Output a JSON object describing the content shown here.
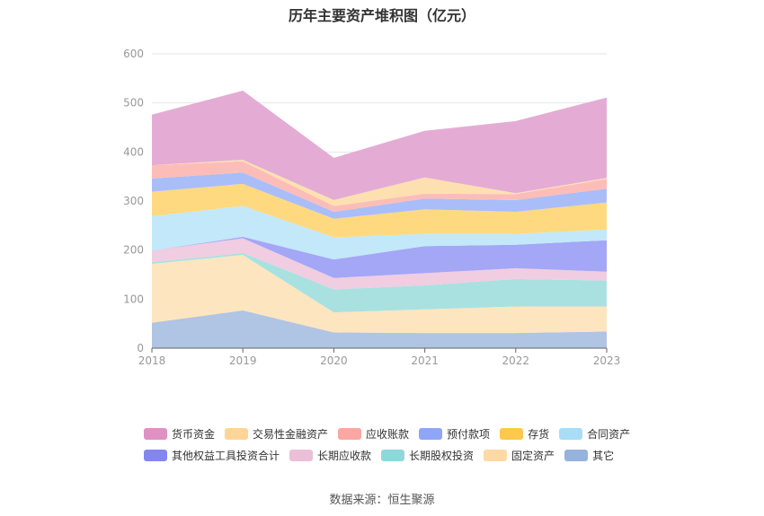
{
  "chart_data": {
    "type": "area",
    "stacked": true,
    "title": "历年主要资产堆积图（亿元）",
    "x": [
      "2018",
      "2019",
      "2020",
      "2021",
      "2022",
      "2023"
    ],
    "ylim": [
      0,
      600
    ],
    "yticks": [
      0,
      100,
      200,
      300,
      400,
      500,
      600
    ],
    "grid": true,
    "legend_position": "bottom",
    "series": [
      {
        "name": "其它",
        "color": "#b0c4e3",
        "legendColor": "#95b3dc",
        "values": [
          52,
          77,
          32,
          31,
          31,
          34
        ]
      },
      {
        "name": "固定资产",
        "color": "#fde5c0",
        "legendColor": "#fdd9a5",
        "values": [
          120,
          113,
          41,
          48,
          54,
          51
        ]
      },
      {
        "name": "长期股权投资",
        "color": "#a9e1e1",
        "legendColor": "#8fd8da",
        "values": [
          3,
          4,
          47,
          49,
          56,
          53
        ]
      },
      {
        "name": "长期应收款",
        "color": "#f0cde1",
        "legendColor": "#ebbfd7",
        "values": [
          24,
          30,
          23,
          25,
          22,
          18
        ]
      },
      {
        "name": "其他权益工具投资合计",
        "color": "#a4a6f6",
        "legendColor": "#8486f0",
        "values": [
          0,
          3,
          38,
          55,
          48,
          64
        ]
      },
      {
        "name": "合同资产",
        "color": "#c2e8fa",
        "legendColor": "#a8dcf7",
        "values": [
          70,
          63,
          45,
          25,
          22,
          22
        ]
      },
      {
        "name": "存货",
        "color": "#fed980",
        "legendColor": "#fec84a",
        "values": [
          50,
          45,
          38,
          50,
          45,
          55
        ]
      },
      {
        "name": "预付款项",
        "color": "#a9bdf9",
        "legendColor": "#8ea6f5",
        "values": [
          27,
          23,
          14,
          22,
          24,
          28
        ]
      },
      {
        "name": "应收账款",
        "color": "#fcbdb8",
        "legendColor": "#f9a7a0",
        "values": [
          27,
          23,
          12,
          10,
          12,
          20
        ]
      },
      {
        "name": "交易性金融资产",
        "color": "#fde0b0",
        "legendColor": "#fdd598",
        "values": [
          0,
          3,
          12,
          33,
          2,
          2
        ]
      },
      {
        "name": "货币资金",
        "color": "#e4acd4",
        "legendColor": "#df91c4",
        "values": [
          103,
          141,
          86,
          95,
          147,
          164
        ]
      }
    ]
  },
  "legend_order": [
    [
      "货币资金",
      "交易性金融资产",
      "应收账款",
      "预付款项",
      "存货",
      "合同资产"
    ],
    [
      "其他权益工具投资合计",
      "长期应收款",
      "长期股权投资",
      "固定资产",
      "其它"
    ]
  ],
  "source": {
    "label": "数据来源：",
    "value": "恒生聚源"
  }
}
